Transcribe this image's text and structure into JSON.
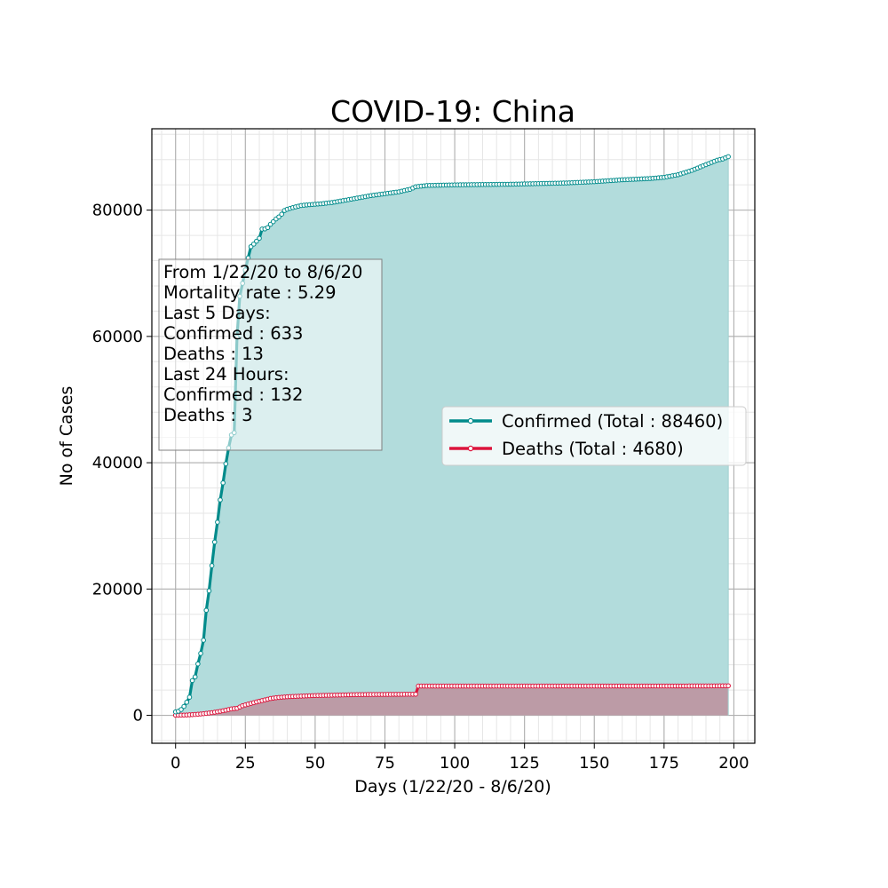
{
  "chart_data": {
    "type": "line",
    "title": "COVID-19: China",
    "xlabel": "Days (1/22/20 - 8/6/20)",
    "ylabel": "No of Cases",
    "xlim": [
      -8.5,
      207.5
    ],
    "ylim": [
      -4423,
      92883
    ],
    "xticks": [
      0,
      25,
      50,
      75,
      100,
      125,
      150,
      175,
      200
    ],
    "yticks": [
      0,
      20000,
      40000,
      60000,
      80000
    ],
    "grid": true,
    "legend_position": "right",
    "annotation": [
      "From 1/22/20 to 8/6/20",
      "Mortality rate : 5.29",
      "Last 5 Days:",
      "Confirmed : 633",
      "Deaths : 13",
      "Last 24 Hours:",
      "Confirmed : 132",
      "Deaths : 3"
    ],
    "colors": {
      "confirmed": "#008b8b",
      "deaths": "#dc143c",
      "confirmed_fill": "#b2dcdc",
      "deaths_fill": "#bc9ba6"
    },
    "series": [
      {
        "name": "Confirmed (Total : 88460)",
        "key": "confirmed",
        "points": [
          [
            0,
            548
          ],
          [
            1,
            643
          ],
          [
            2,
            920
          ],
          [
            3,
            1406
          ],
          [
            4,
            2075
          ],
          [
            5,
            2877
          ],
          [
            6,
            5509
          ],
          [
            7,
            6087
          ],
          [
            8,
            8141
          ],
          [
            9,
            9802
          ],
          [
            10,
            11891
          ],
          [
            11,
            16630
          ],
          [
            12,
            19716
          ],
          [
            13,
            23707
          ],
          [
            14,
            27440
          ],
          [
            15,
            30587
          ],
          [
            16,
            34110
          ],
          [
            17,
            36814
          ],
          [
            18,
            39829
          ],
          [
            19,
            42354
          ],
          [
            20,
            44386
          ],
          [
            21,
            44759
          ],
          [
            22,
            59895
          ],
          [
            23,
            66358
          ],
          [
            24,
            68413
          ],
          [
            25,
            70513
          ],
          [
            26,
            72434
          ],
          [
            27,
            74211
          ],
          [
            28,
            74619
          ],
          [
            29,
            75077
          ],
          [
            30,
            75550
          ],
          [
            31,
            77001
          ],
          [
            32,
            77022
          ],
          [
            33,
            77241
          ],
          [
            34,
            77754
          ],
          [
            35,
            78166
          ],
          [
            36,
            78600
          ],
          [
            37,
            78928
          ],
          [
            38,
            79356
          ],
          [
            39,
            79932
          ],
          [
            40,
            80136
          ],
          [
            42,
            80402
          ],
          [
            45,
            80735
          ],
          [
            48,
            80860
          ],
          [
            52,
            81001
          ],
          [
            56,
            81200
          ],
          [
            60,
            81500
          ],
          [
            65,
            81900
          ],
          [
            70,
            82300
          ],
          [
            75,
            82600
          ],
          [
            80,
            82900
          ],
          [
            84,
            83300
          ],
          [
            86,
            83700
          ],
          [
            90,
            83900
          ],
          [
            100,
            84000
          ],
          [
            120,
            84100
          ],
          [
            140,
            84300
          ],
          [
            150,
            84500
          ],
          [
            160,
            84800
          ],
          [
            170,
            85000
          ],
          [
            175,
            85200
          ],
          [
            180,
            85600
          ],
          [
            185,
            86300
          ],
          [
            190,
            87200
          ],
          [
            194,
            87900
          ],
          [
            196,
            88100
          ],
          [
            198,
            88460
          ]
        ]
      },
      {
        "name": "Deaths (Total : 4680)",
        "key": "deaths",
        "points": [
          [
            0,
            17
          ],
          [
            2,
            26
          ],
          [
            4,
            56
          ],
          [
            6,
            106
          ],
          [
            8,
            170
          ],
          [
            10,
            259
          ],
          [
            12,
            361
          ],
          [
            14,
            490
          ],
          [
            16,
            638
          ],
          [
            18,
            813
          ],
          [
            20,
            1016
          ],
          [
            22,
            1113
          ],
          [
            24,
            1523
          ],
          [
            26,
            1770
          ],
          [
            28,
            2004
          ],
          [
            30,
            2236
          ],
          [
            32,
            2442
          ],
          [
            34,
            2663
          ],
          [
            36,
            2788
          ],
          [
            38,
            2870
          ],
          [
            40,
            2943
          ],
          [
            45,
            3042
          ],
          [
            50,
            3136
          ],
          [
            55,
            3177
          ],
          [
            60,
            3230
          ],
          [
            65,
            3281
          ],
          [
            70,
            3300
          ],
          [
            75,
            3312
          ],
          [
            80,
            3326
          ],
          [
            85,
            3340
          ],
          [
            86,
            3341
          ],
          [
            87,
            4632
          ],
          [
            100,
            4633
          ],
          [
            150,
            4640
          ],
          [
            190,
            4650
          ],
          [
            198,
            4680
          ]
        ]
      }
    ]
  }
}
